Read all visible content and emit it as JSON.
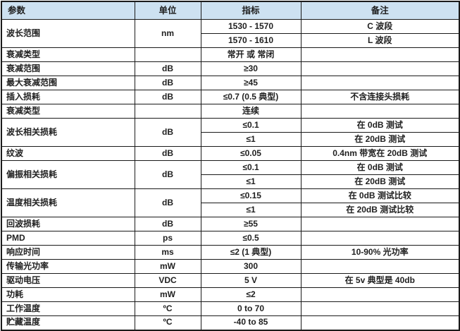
{
  "colors": {
    "header_bg": "#cde1f1",
    "grid_border": "#1a1a1a",
    "text": "#1f1f1f",
    "cell_bg": "#ffffff"
  },
  "table": {
    "headers": {
      "param": "参数",
      "unit": "单位",
      "spec": "指标",
      "note": "备注"
    },
    "groups": [
      {
        "param": "波长范围",
        "unit": "nm",
        "rows": [
          {
            "spec": "1530 - 1570",
            "note": "C 波段"
          },
          {
            "spec": "1570 - 1610",
            "note": "L 波段"
          }
        ]
      },
      {
        "param": "衰减类型",
        "unit": "",
        "rows": [
          {
            "spec": "常开 或 常闭",
            "note": ""
          }
        ]
      },
      {
        "param": "衰减范围",
        "unit": "dB",
        "rows": [
          {
            "spec": "≥30",
            "note": ""
          }
        ]
      },
      {
        "param": "最大衰减范围",
        "unit": "dB",
        "rows": [
          {
            "spec": "≥45",
            "note": ""
          }
        ]
      },
      {
        "param": "插入损耗",
        "unit": "dB",
        "rows": [
          {
            "spec": "≤0.7 (0.5 典型)",
            "note": "不含连接头损耗"
          }
        ]
      },
      {
        "param": "衰减类型",
        "unit": "",
        "rows": [
          {
            "spec": "连续",
            "note": ""
          }
        ]
      },
      {
        "param": "波长相关损耗",
        "unit": "dB",
        "rows": [
          {
            "spec": "≤0.1",
            "note": "在 0dB 测试"
          },
          {
            "spec": "≤1",
            "note": "在 20dB 测试"
          }
        ]
      },
      {
        "param": "纹波",
        "unit": "dB",
        "rows": [
          {
            "spec": "≤0.05",
            "note": "0.4nm 带宽在 20dB 测试"
          }
        ]
      },
      {
        "param": "偏振相关损耗",
        "unit": "dB",
        "rows": [
          {
            "spec": "≤0.1",
            "note": "在 0dB 测试"
          },
          {
            "spec": "≤1",
            "note": "在 20dB 测试"
          }
        ]
      },
      {
        "param": "温度相关损耗",
        "unit": "dB",
        "rows": [
          {
            "spec": "≤0.15",
            "note": "在 0dB 测试比较"
          },
          {
            "spec": "≤1",
            "note": "在 20dB 测试比较"
          }
        ]
      },
      {
        "param": "回波损耗",
        "unit": "dB",
        "rows": [
          {
            "spec": "≥55",
            "note": ""
          }
        ]
      },
      {
        "param": "PMD",
        "unit": "ps",
        "rows": [
          {
            "spec": "≤0.5",
            "note": ""
          }
        ]
      },
      {
        "param": "响应时间",
        "unit": "ms",
        "rows": [
          {
            "spec": "≤2  (1 典型)",
            "note": "10-90% 光功率"
          }
        ]
      },
      {
        "param": "传输光功率",
        "unit": "mW",
        "rows": [
          {
            "spec": "300",
            "note": ""
          }
        ]
      },
      {
        "param": "驱动电压",
        "unit": "VDC",
        "rows": [
          {
            "spec": "5 V",
            "note": "在 5v 典型是 40db"
          }
        ]
      },
      {
        "param": "功耗",
        "unit": "mW",
        "rows": [
          {
            "spec": "≤2",
            "note": ""
          }
        ]
      },
      {
        "param": "工作温度",
        "unit": "ºC",
        "rows": [
          {
            "spec": "0 to 70",
            "note": ""
          }
        ]
      },
      {
        "param": "贮藏温度",
        "unit": "ºC",
        "rows": [
          {
            "spec": "-40 to 85",
            "note": ""
          }
        ]
      }
    ]
  }
}
